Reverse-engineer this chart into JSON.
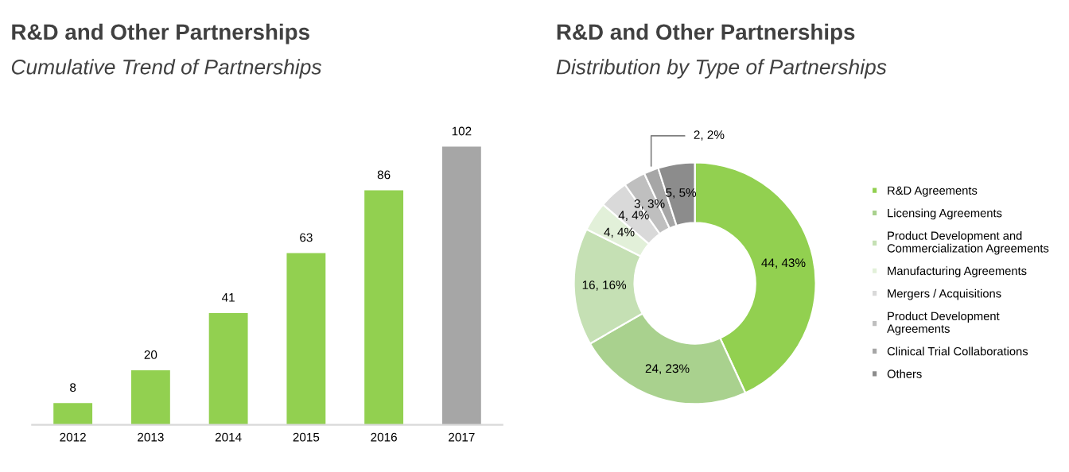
{
  "chart_data": [
    {
      "type": "bar",
      "title": "R&D and Other Partnerships",
      "subtitle": "Cumulative Trend of Partnerships",
      "categories": [
        "2012",
        "2013",
        "2014",
        "2015",
        "2016",
        "2017"
      ],
      "values": [
        8,
        20,
        41,
        63,
        86,
        102
      ],
      "colors": [
        "#92d050",
        "#92d050",
        "#92d050",
        "#92d050",
        "#92d050",
        "#a6a6a6"
      ],
      "data_labels": true,
      "grid": false
    },
    {
      "type": "donut",
      "title": "R&D and Other Partnerships",
      "subtitle": "Distribution by Type of Partnerships",
      "categories": [
        "R&D Agreements",
        "Licensing Agreements",
        "Product Development and\nCommercialization Agreements",
        "Manufacturing Agreements",
        "Mergers / Acquisitions",
        "Product Development\nAgreements",
        "Clinical Trial Collaborations",
        "Others"
      ],
      "values": [
        44,
        24,
        16,
        4,
        4,
        3,
        2,
        5
      ],
      "value_labels": [
        "44, 43%",
        "24, 23%",
        "16, 16%",
        "4, 4%",
        "4, 4%",
        "3, 3%",
        "2, 2%",
        "5, 5%"
      ],
      "colors": [
        "#92d050",
        "#a9d18e",
        "#c5e0b4",
        "#e2f0d9",
        "#d9d9d9",
        "#bfbfbf",
        "#a6a6a6",
        "#8c8c8c"
      ],
      "legend": "right"
    }
  ]
}
